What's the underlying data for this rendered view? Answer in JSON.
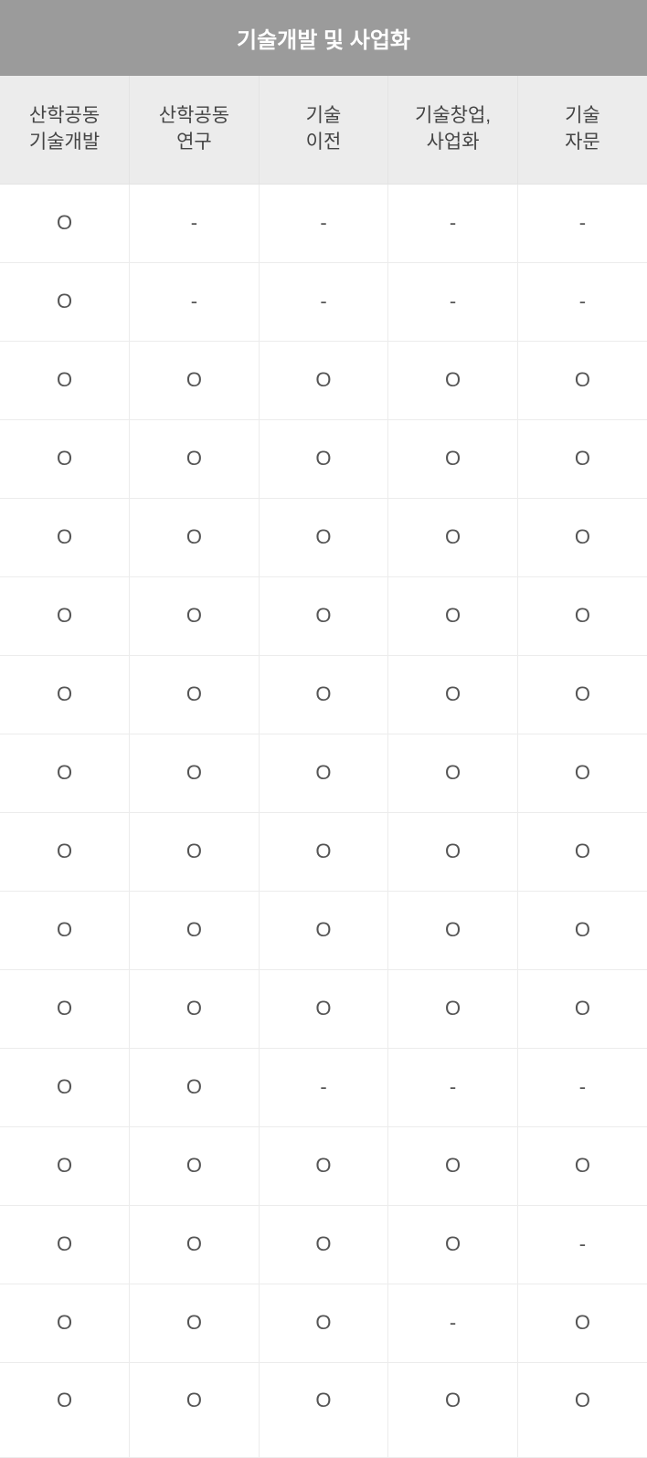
{
  "table": {
    "type": "table",
    "title": "기술개발 및 사업화",
    "columns": [
      "산학공동\n기술개발",
      "산학공동\n연구",
      "기술\n이전",
      "기술창업,\n사업화",
      "기술\n자문"
    ],
    "rows": [
      [
        "O",
        "-",
        "-",
        "-",
        "-"
      ],
      [
        "O",
        "-",
        "-",
        "-",
        "-"
      ],
      [
        "O",
        "O",
        "O",
        "O",
        "O"
      ],
      [
        "O",
        "O",
        "O",
        "O",
        "O"
      ],
      [
        "O",
        "O",
        "O",
        "O",
        "O"
      ],
      [
        "O",
        "O",
        "O",
        "O",
        "O"
      ],
      [
        "O",
        "O",
        "O",
        "O",
        "O"
      ],
      [
        "O",
        "O",
        "O",
        "O",
        "O"
      ],
      [
        "O",
        "O",
        "O",
        "O",
        "O"
      ],
      [
        "O",
        "O",
        "O",
        "O",
        "O"
      ],
      [
        "O",
        "O",
        "O",
        "O",
        "O"
      ],
      [
        "O",
        "O",
        "-",
        "-",
        "-"
      ],
      [
        "O",
        "O",
        "O",
        "O",
        "O"
      ],
      [
        "O",
        "O",
        "O",
        "O",
        "-"
      ],
      [
        "O",
        "O",
        "O",
        "-",
        "O"
      ],
      [
        "O",
        "O",
        "O",
        "O",
        "O"
      ]
    ],
    "colors": {
      "title_bg": "#9b9b9b",
      "title_text": "#ffffff",
      "header_bg": "#ececec",
      "header_text": "#444444",
      "cell_bg": "#ffffff",
      "cell_text": "#555555",
      "border": "#ececec"
    },
    "fontsize": {
      "title": 24,
      "header": 21,
      "cell": 22
    },
    "column_count": 5,
    "row_heights": {
      "title": 83,
      "header": 118,
      "body": 86,
      "last": 104
    }
  }
}
